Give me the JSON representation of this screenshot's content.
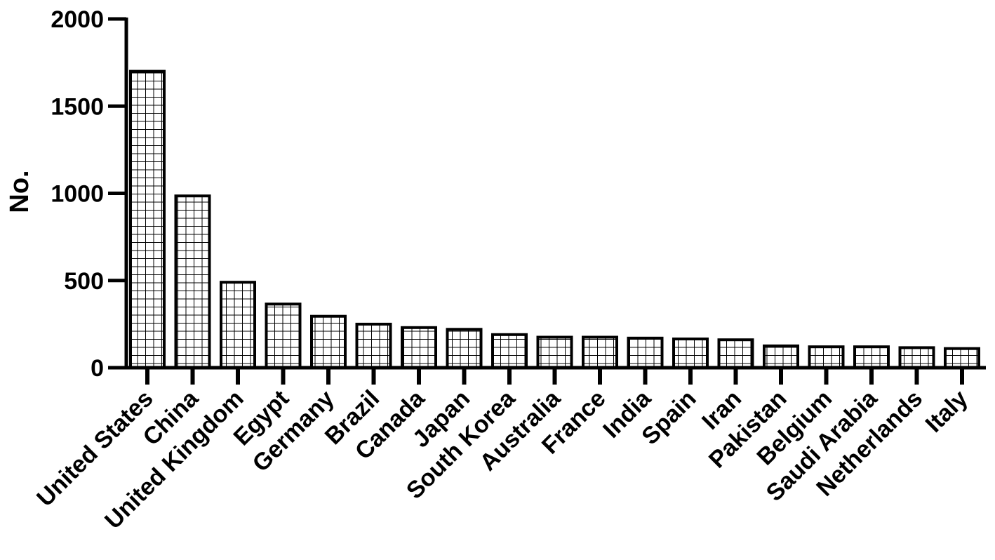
{
  "chart_data": {
    "type": "bar",
    "title": "",
    "xlabel": "",
    "ylabel": "No.",
    "ylim": [
      0,
      2000
    ],
    "yticks": [
      0,
      500,
      1000,
      1500,
      2000
    ],
    "grid": false,
    "legend": "none",
    "bar_fill": "grid-hatch",
    "colors": {
      "bar_stroke": "#000000",
      "bar_fill": "#ffffff",
      "axis": "#000000"
    },
    "categories": [
      "United States",
      "China",
      "United Kingdom",
      "Egypt",
      "Germany",
      "Brazil",
      "Canada",
      "Japan",
      "South Korea",
      "Australia",
      "France",
      "India",
      "Spain",
      "Iran",
      "Pakistan",
      "Belgium",
      "Saudi Arabia",
      "Netherlands",
      "Italy"
    ],
    "values": [
      1700,
      985,
      490,
      365,
      295,
      250,
      230,
      220,
      190,
      175,
      175,
      170,
      165,
      160,
      125,
      120,
      120,
      115,
      110
    ]
  }
}
